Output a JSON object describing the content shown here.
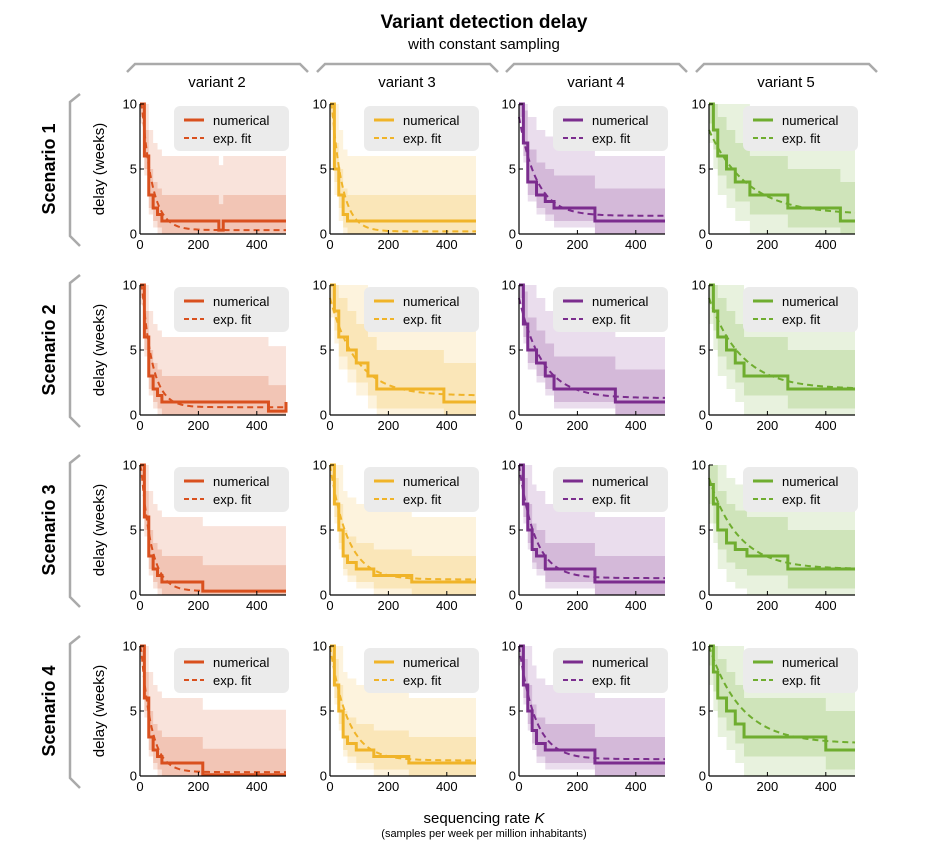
{
  "chart_data": {
    "type": "line",
    "title": "Variant detection delay",
    "subtitle": "with constant sampling",
    "xlabel": "sequencing rate",
    "xlabel_symbol": "K",
    "xlabel_sub": "(samples per week per million inhabitants)",
    "ylabel": "delay (weeks)",
    "xlim": [
      0,
      500
    ],
    "ylim": [
      0,
      10
    ],
    "xticks": [
      "0",
      "200",
      "400"
    ],
    "yticks": [
      "0",
      "5",
      "10"
    ],
    "legend": [
      "numerical",
      "exp. fit"
    ],
    "legend_position": "top-right",
    "colors": {
      "variant 2": "#d9501e",
      "variant 3": "#f0b429",
      "variant 4": "#7b2d8e",
      "variant 5": "#6fad2f",
      "legend_bg": "#ebebeb",
      "bracket": "#aaaaaa"
    },
    "columns": [
      "variant 2",
      "variant 3",
      "variant 4",
      "variant 5"
    ],
    "rows": [
      "Scenario 1",
      "Scenario 2",
      "Scenario 3",
      "Scenario 4"
    ],
    "panels": [
      [
        {
          "variant": "variant 2",
          "x": [
            0,
            15,
            30,
            45,
            60,
            75,
            250,
            270,
            285,
            300,
            500
          ],
          "y": [
            10,
            6,
            3,
            2,
            1.5,
            1,
            1,
            0.3,
            1,
            1,
            1
          ],
          "fit_y0": 12,
          "fit_tau": 35,
          "fit_floor": 0.3,
          "band50": [
            2,
            1
          ],
          "band90": [
            5,
            1.5
          ]
        },
        {
          "variant": "variant 3",
          "x": [
            0,
            15,
            30,
            45,
            60,
            75,
            200,
            500
          ],
          "y": [
            10,
            5,
            3,
            1.5,
            1,
            1,
            1,
            1
          ],
          "fit_y0": 12,
          "fit_tau": 35,
          "fit_floor": 0.2,
          "band50": [
            2,
            1
          ],
          "band90": [
            5,
            2
          ]
        },
        {
          "variant": "variant 4",
          "x": [
            0,
            15,
            30,
            60,
            90,
            120,
            260,
            500
          ],
          "y": [
            10,
            7,
            4,
            3,
            2.5,
            2,
            1,
            1
          ],
          "fit_y0": 9,
          "fit_tau": 60,
          "fit_floor": 1.4,
          "band50": [
            2.5,
            1
          ],
          "band90": [
            5,
            1.5
          ]
        },
        {
          "variant": "variant 5",
          "x": [
            0,
            15,
            30,
            60,
            90,
            140,
            270,
            450,
            500
          ],
          "y": [
            10,
            8,
            6,
            5,
            4,
            3,
            2,
            1,
            1
          ],
          "fit_y0": 8,
          "fit_tau": 130,
          "fit_floor": 1.5,
          "band50": [
            3,
            1.5
          ],
          "band90": [
            6,
            3
          ]
        }
      ],
      [
        {
          "variant": "variant 2",
          "x": [
            0,
            15,
            30,
            45,
            60,
            75,
            200,
            400,
            440,
            500
          ],
          "y": [
            10,
            6,
            3,
            2,
            1.5,
            1,
            1,
            1,
            0.3,
            1
          ],
          "fit_y0": 12,
          "fit_tau": 35,
          "fit_floor": 0.6,
          "band50": [
            2,
            1
          ],
          "band90": [
            5,
            1.5
          ]
        },
        {
          "variant": "variant 3",
          "x": [
            0,
            15,
            30,
            60,
            90,
            130,
            160,
            390,
            500
          ],
          "y": [
            10,
            8,
            6,
            5,
            4,
            3,
            2,
            1,
            1
          ],
          "fit_y0": 9,
          "fit_tau": 90,
          "fit_floor": 1.5,
          "band50": [
            3,
            1.5
          ],
          "band90": [
            6,
            2.5
          ]
        },
        {
          "variant": "variant 4",
          "x": [
            0,
            15,
            30,
            60,
            90,
            120,
            330,
            500
          ],
          "y": [
            10,
            7,
            5,
            4,
            3,
            2,
            1,
            1
          ],
          "fit_y0": 9,
          "fit_tau": 80,
          "fit_floor": 1.3,
          "band50": [
            2.5,
            1
          ],
          "band90": [
            5,
            1.5
          ]
        },
        {
          "variant": "variant 5",
          "x": [
            0,
            15,
            30,
            60,
            90,
            120,
            200,
            270,
            500
          ],
          "y": [
            10,
            8,
            6,
            5,
            4,
            3,
            3,
            2,
            2
          ],
          "fit_y0": 9,
          "fit_tau": 110,
          "fit_floor": 2,
          "band50": [
            3,
            1.5
          ],
          "band90": [
            6,
            3
          ]
        }
      ],
      [
        {
          "variant": "variant 2",
          "x": [
            0,
            15,
            30,
            45,
            60,
            75,
            215,
            500
          ],
          "y": [
            10,
            6,
            3,
            2,
            1.5,
            1,
            0.3,
            0.3
          ],
          "fit_y0": 11,
          "fit_tau": 35,
          "fit_floor": 0.3,
          "band50": [
            2,
            1
          ],
          "band90": [
            5,
            1.5
          ]
        },
        {
          "variant": "variant 3",
          "x": [
            0,
            15,
            30,
            45,
            60,
            90,
            150,
            280,
            500
          ],
          "y": [
            10,
            7,
            5,
            3,
            2.5,
            2,
            1.5,
            1,
            1
          ],
          "fit_y0": 10,
          "fit_tau": 60,
          "fit_floor": 1.2,
          "band50": [
            2,
            1
          ],
          "band90": [
            5,
            1.5
          ]
        },
        {
          "variant": "variant 4",
          "x": [
            0,
            15,
            30,
            45,
            60,
            90,
            260,
            500
          ],
          "y": [
            10,
            7,
            5,
            3.5,
            3,
            2,
            1,
            1
          ],
          "fit_y0": 10,
          "fit_tau": 55,
          "fit_floor": 1.3,
          "band50": [
            2,
            1
          ],
          "band90": [
            5,
            1.5
          ]
        },
        {
          "variant": "variant 5",
          "x": [
            0,
            15,
            30,
            60,
            90,
            130,
            270,
            500
          ],
          "y": [
            8.5,
            7,
            5,
            4,
            3.5,
            3,
            2,
            2
          ],
          "fit_y0": 9,
          "fit_tau": 100,
          "fit_floor": 2,
          "band50": [
            3,
            1.5
          ],
          "band90": [
            5,
            3
          ]
        }
      ],
      [
        {
          "variant": "variant 2",
          "x": [
            0,
            15,
            30,
            45,
            60,
            75,
            215,
            500
          ],
          "y": [
            10,
            6,
            3,
            2,
            1.5,
            1,
            0.1,
            0.1
          ],
          "fit_y0": 11,
          "fit_tau": 35,
          "fit_floor": 0.3,
          "band50": [
            2,
            1
          ],
          "band90": [
            5,
            1.5
          ]
        },
        {
          "variant": "variant 3",
          "x": [
            0,
            15,
            30,
            45,
            60,
            90,
            150,
            270,
            500
          ],
          "y": [
            10,
            7,
            5,
            3,
            2.5,
            2,
            1.5,
            1,
            1
          ],
          "fit_y0": 10,
          "fit_tau": 60,
          "fit_floor": 1.2,
          "band50": [
            2,
            1
          ],
          "band90": [
            5,
            1.5
          ]
        },
        {
          "variant": "variant 4",
          "x": [
            0,
            15,
            30,
            45,
            60,
            90,
            260,
            500
          ],
          "y": [
            10,
            7,
            5,
            3.5,
            2.5,
            2,
            1,
            1
          ],
          "fit_y0": 10,
          "fit_tau": 55,
          "fit_floor": 1.3,
          "band50": [
            2,
            1
          ],
          "band90": [
            5,
            1.5
          ]
        },
        {
          "variant": "variant 5",
          "x": [
            0,
            15,
            30,
            60,
            90,
            120,
            400,
            500
          ],
          "y": [
            10,
            8,
            6,
            5,
            4,
            3,
            2,
            2
          ],
          "fit_y0": 10,
          "fit_tau": 110,
          "fit_floor": 2.5,
          "band50": [
            3,
            1.5
          ],
          "band90": [
            6,
            3
          ]
        }
      ]
    ]
  }
}
